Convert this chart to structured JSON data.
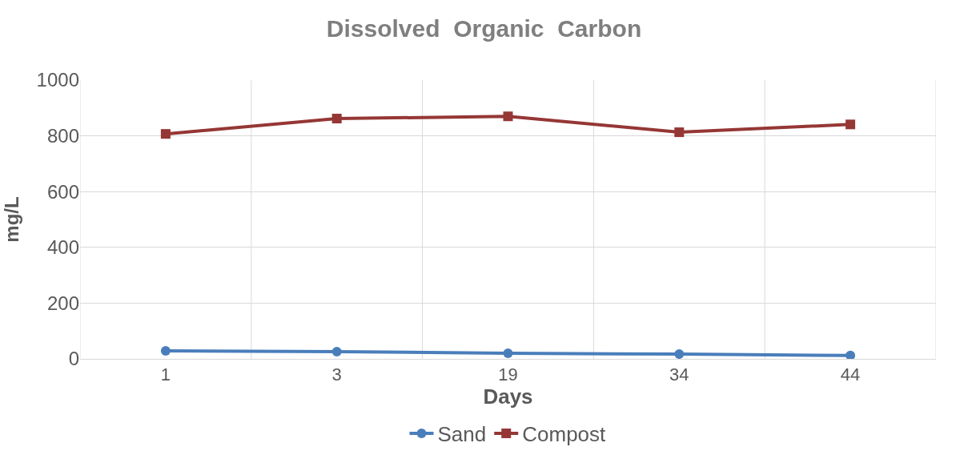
{
  "chart_data": {
    "type": "line",
    "title": "Dissolved  Organic  Carbon",
    "xlabel": "Days",
    "ylabel": "mg/L",
    "categories": [
      "1",
      "3",
      "19",
      "34",
      "44"
    ],
    "series": [
      {
        "name": "Sand",
        "color": "#4a7ebb",
        "marker": "circle",
        "values": [
          29,
          26,
          20,
          17,
          12
        ]
      },
      {
        "name": "Compost",
        "color": "#953735",
        "marker": "square",
        "values": [
          807,
          862,
          870,
          813,
          841
        ]
      }
    ],
    "ylim": [
      0,
      1000
    ],
    "yticks": [
      0,
      200,
      400,
      600,
      800,
      1000
    ],
    "grid": true,
    "legend": "bottom",
    "line_style": "solid"
  }
}
